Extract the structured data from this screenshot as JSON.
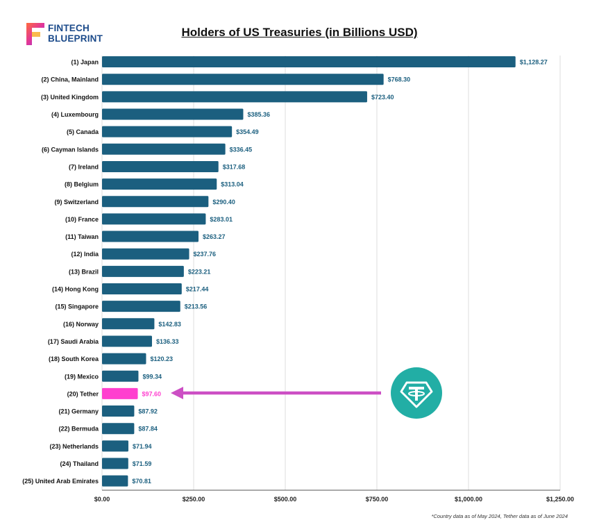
{
  "brand": {
    "line1": "FINTECH",
    "line2": "BLUEPRINT"
  },
  "footnote": "*Country data as of May 2024, Tether data as of June 2024",
  "colors": {
    "bar": "#1b5f7f",
    "highlight": "#ff3fcf",
    "arrow": "#cc4fc4",
    "badge": "#22aea5",
    "label": "#1b5f7f"
  },
  "chart_data": {
    "type": "bar",
    "orientation": "horizontal",
    "title": "Holders of US Treasuries (in Billions USD)",
    "categories": [
      "(1) Japan",
      "(2) China, Mainland",
      "(3) United Kingdom",
      "(4) Luxembourg",
      "(5) Canada",
      "(6) Cayman Islands",
      "(7) Ireland",
      "(8) Belgium",
      "(9) Switzerland",
      "(10) France",
      "(11) Taiwan",
      "(12) India",
      "(13) Brazil",
      "(14) Hong Kong",
      "(15) Singapore",
      "(16) Norway",
      "(17) Saudi Arabia",
      "(18) South Korea",
      "(19) Mexico",
      "(20) Tether",
      "(21) Germany",
      "(22) Bermuda",
      "(23) Netherlands",
      "(24) Thailand",
      "(25) United Arab Emirates"
    ],
    "values": [
      1128.27,
      768.3,
      723.4,
      385.36,
      354.49,
      336.45,
      317.68,
      313.04,
      290.4,
      283.01,
      263.27,
      237.76,
      223.21,
      217.44,
      213.56,
      142.83,
      136.33,
      120.23,
      99.34,
      97.6,
      87.92,
      87.84,
      71.94,
      71.59,
      70.81
    ],
    "value_labels": [
      "$1,128.27",
      "$768.30",
      "$723.40",
      "$385.36",
      "$354.49",
      "$336.45",
      "$317.68",
      "$313.04",
      "$290.40",
      "$283.01",
      "$263.27",
      "$237.76",
      "$223.21",
      "$217.44",
      "$213.56",
      "$142.83",
      "$136.33",
      "$120.23",
      "$99.34",
      "$97.60",
      "$87.92",
      "$87.84",
      "$71.94",
      "$71.59",
      "$70.81"
    ],
    "highlight_index": 19,
    "xticks": [
      0,
      250,
      500,
      750,
      1000,
      1250
    ],
    "xtick_labels": [
      "$0.00",
      "$250.00",
      "$500.00",
      "$750.00",
      "$1,000.00",
      "$1,250.00"
    ],
    "xlim": [
      0,
      1250
    ],
    "grid": true
  }
}
